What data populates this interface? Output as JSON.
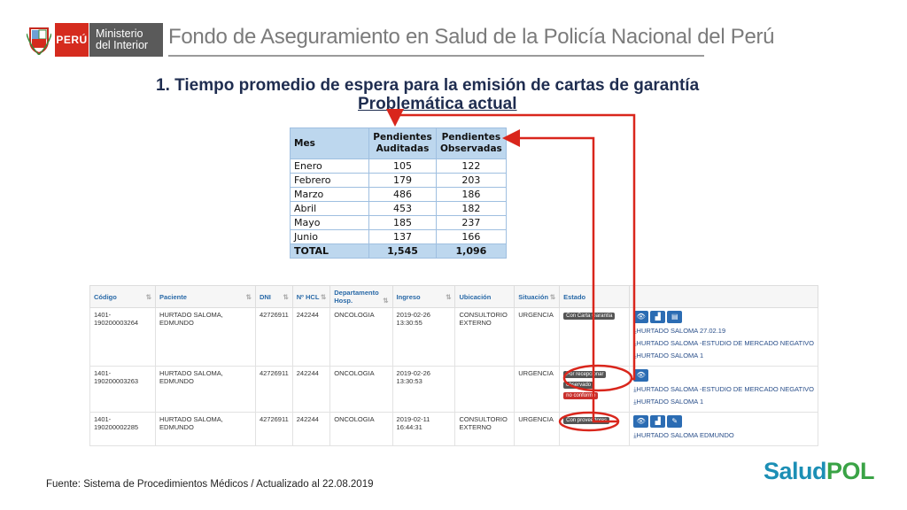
{
  "header": {
    "country": "PERÚ",
    "ministry_line1": "Ministerio",
    "ministry_line2": "del Interior",
    "org_title": "Fondo de Aseguramiento en Salud de la Policía Nacional del Perú"
  },
  "section": {
    "title": "1.  Tiempo promedio de espera para la emisión de cartas de garantía",
    "subtitle": "Problemática actual"
  },
  "summary_table": {
    "headers": [
      "Mes",
      "Pendientes Auditadas",
      "Pendientes Observadas"
    ],
    "rows": [
      [
        "Enero",
        "105",
        "122"
      ],
      [
        "Febrero",
        "179",
        "203"
      ],
      [
        "Marzo",
        "486",
        "186"
      ],
      [
        "Abril",
        "453",
        "182"
      ],
      [
        "Mayo",
        "185",
        "237"
      ],
      [
        "Junio",
        "137",
        "166"
      ]
    ],
    "total": [
      "TOTAL",
      "1,545",
      "1,096"
    ]
  },
  "grid": {
    "headers": [
      "Código",
      "Paciente",
      "DNI",
      "Nº HCL",
      "Departamento Hosp.",
      "Ingreso",
      "Ubicación",
      "Situación",
      "Estado",
      ""
    ],
    "rows": [
      {
        "codigo": "1401-190200003264",
        "paciente": "HURTADO SALOMA, EDMUNDO",
        "dni": "42726911",
        "hcl": "242244",
        "depto": "ONCOLOGIA",
        "ingreso": "2019-02-26 13:30:55",
        "ubicacion": "CONSULTORIO EXTERNO",
        "situacion": "URGENCIA",
        "estado": "Con Carta Garantía",
        "links": [
          "HURTADO SALOMA 27.02.19",
          "HURTADO SALOMA -ESTUDIO DE MERCADO NEGATIVO",
          "HURTADO SALOMA 1"
        ]
      },
      {
        "codigo": "1401-190200003263",
        "paciente": "HURTADO SALOMA, EDMUNDO",
        "dni": "42726911",
        "hcl": "242244",
        "depto": "ONCOLOGIA",
        "ingreso": "2019-02-26 13:30:53",
        "ubicacion": "",
        "situacion": "URGENCIA",
        "estado": "Por recepcionar",
        "estado2": "observado",
        "estado3": "no conforme",
        "links": [
          "HURTADO SALOMA -ESTUDIO DE MERCADO NEGATIVO",
          "HURTADO SALOMA 1"
        ]
      },
      {
        "codigo": "1401-190200002285",
        "paciente": "HURTADO SALOMA, EDMUNDO",
        "dni": "42726911",
        "hcl": "242244",
        "depto": "ONCOLOGIA",
        "ingreso": "2019-02-11 16:44:31",
        "ubicacion": "CONSULTORIO EXTERNO",
        "situacion": "URGENCIA",
        "estado": "Con proveedores",
        "links": [
          "HURTADO SALOMA EDMUNDO"
        ]
      }
    ]
  },
  "footer": {
    "source": "Fuente: Sistema de Procedimientos Médicos / Actualizado al 22.08.2019",
    "logo_a": "Salud",
    "logo_b": "POL"
  },
  "colors": {
    "accent_red": "#d52b1e",
    "table_header": "#bdd7ee",
    "title": "#1f2d50",
    "button_blue": "#2b6cb3"
  }
}
